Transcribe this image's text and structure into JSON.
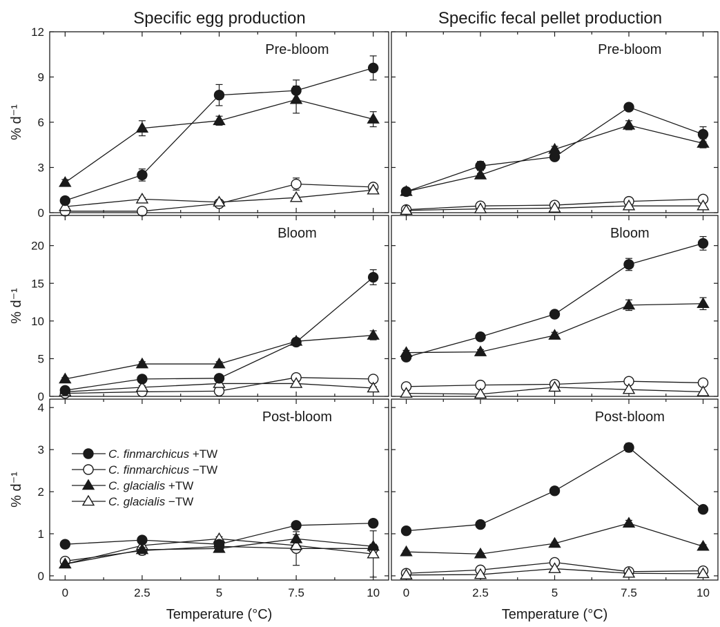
{
  "column_titles": [
    "Specific egg production",
    "Specific fecal pellet production"
  ],
  "legend": [
    {
      "species": "C. finmarchicus",
      "treatment": "+TW",
      "marker": "circle",
      "filled": true
    },
    {
      "species": "C. finmarchicus",
      "treatment": "−TW",
      "marker": "circle",
      "filled": false
    },
    {
      "species": "C. glacialis",
      "treatment": "+TW",
      "marker": "triangle",
      "filled": true
    },
    {
      "species": "C. glacialis",
      "treatment": "−TW",
      "marker": "triangle",
      "filled": false
    }
  ],
  "colors": {
    "ink": "#1a1a1a",
    "open_fill": "#ffffff"
  },
  "chart_data": [
    {
      "type": "line",
      "column": 0,
      "row": 0,
      "label": "Pre-bloom",
      "ylabel": "% d⁻¹",
      "xlabel": "",
      "x": [
        0,
        2.5,
        5,
        7.5,
        10
      ],
      "xlim": [
        -0.5,
        10.5
      ],
      "ylim": [
        0,
        12
      ],
      "yticks": [
        0,
        3,
        6,
        9,
        12
      ],
      "series": [
        {
          "name": "C. finmarchicus +TW",
          "values": [
            0.8,
            2.5,
            7.8,
            8.1,
            9.6
          ],
          "errors": [
            0,
            0.4,
            0.7,
            0.7,
            0.8
          ]
        },
        {
          "name": "C. finmarchicus −TW",
          "values": [
            0.1,
            0.1,
            0.6,
            1.9,
            1.7
          ],
          "errors": [
            0,
            0,
            0,
            0.4,
            0.2
          ]
        },
        {
          "name": "C. glacialis +TW",
          "values": [
            2.0,
            5.6,
            6.1,
            7.5,
            6.2
          ],
          "errors": [
            0.2,
            0.5,
            0.3,
            0.9,
            0.5
          ]
        },
        {
          "name": "C. glacialis −TW",
          "values": [
            0.4,
            0.9,
            0.7,
            1.0,
            1.5
          ],
          "errors": [
            0,
            0.1,
            0,
            0.1,
            0.1
          ]
        }
      ]
    },
    {
      "type": "line",
      "column": 1,
      "row": 0,
      "label": "Pre-bloom",
      "ylabel": "",
      "xlabel": "",
      "x": [
        0,
        2.5,
        5,
        7.5,
        10
      ],
      "xlim": [
        -0.5,
        10.5
      ],
      "ylim": [
        0,
        12
      ],
      "yticks": [
        0,
        3,
        6,
        9,
        12
      ],
      "series": [
        {
          "name": "C. finmarchicus +TW",
          "values": [
            1.4,
            3.1,
            3.7,
            7.0,
            5.2
          ],
          "errors": [
            0.1,
            0.3,
            0.2,
            0.2,
            0.5
          ]
        },
        {
          "name": "C. finmarchicus −TW",
          "values": [
            0.2,
            0.45,
            0.5,
            0.75,
            0.9
          ],
          "errors": [
            0,
            0,
            0,
            0,
            0
          ]
        },
        {
          "name": "C. glacialis +TW",
          "values": [
            1.4,
            2.5,
            4.2,
            5.8,
            4.6
          ],
          "errors": [
            0.1,
            0.1,
            0.2,
            0.3,
            0.3
          ]
        },
        {
          "name": "C. glacialis −TW",
          "values": [
            0.15,
            0.25,
            0.3,
            0.45,
            0.45
          ],
          "errors": [
            0,
            0,
            0,
            0,
            0
          ]
        }
      ]
    },
    {
      "type": "line",
      "column": 0,
      "row": 1,
      "label": "Bloom",
      "ylabel": "% d⁻¹",
      "xlabel": "",
      "x": [
        0,
        2.5,
        5,
        7.5,
        10
      ],
      "xlim": [
        -0.5,
        10.5
      ],
      "ylim": [
        0,
        24
      ],
      "yticks": [
        0,
        5,
        10,
        15,
        20
      ],
      "series": [
        {
          "name": "C. finmarchicus +TW",
          "values": [
            0.8,
            2.3,
            2.4,
            7.2,
            15.8
          ],
          "errors": [
            0,
            0.3,
            0.4,
            0.5,
            1.0
          ]
        },
        {
          "name": "C. finmarchicus −TW",
          "values": [
            0.4,
            0.6,
            0.7,
            2.5,
            2.3
          ],
          "errors": [
            0,
            0,
            0,
            0.3,
            0.2
          ]
        },
        {
          "name": "C. glacialis +TW",
          "values": [
            2.3,
            4.3,
            4.3,
            7.3,
            8.1
          ],
          "errors": [
            0.2,
            0.3,
            0.3,
            0.4,
            0.6
          ]
        },
        {
          "name": "C. glacialis −TW",
          "values": [
            0.6,
            1.2,
            1.7,
            1.7,
            1.1
          ],
          "errors": [
            0,
            0.2,
            0.2,
            0.3,
            0.2
          ]
        }
      ]
    },
    {
      "type": "line",
      "column": 1,
      "row": 1,
      "label": "Bloom",
      "ylabel": "",
      "xlabel": "",
      "x": [
        0,
        2.5,
        5,
        7.5,
        10
      ],
      "xlim": [
        -0.5,
        10.5
      ],
      "ylim": [
        0,
        24
      ],
      "yticks": [
        0,
        5,
        10,
        15,
        20
      ],
      "series": [
        {
          "name": "C. finmarchicus +TW",
          "values": [
            5.2,
            7.9,
            10.9,
            17.5,
            20.3
          ],
          "errors": [
            0.5,
            0.3,
            0.3,
            0.8,
            0.9
          ]
        },
        {
          "name": "C. finmarchicus −TW",
          "values": [
            1.3,
            1.5,
            1.6,
            2.0,
            1.8
          ],
          "errors": [
            0,
            0,
            0,
            0,
            0
          ]
        },
        {
          "name": "C. glacialis +TW",
          "values": [
            5.8,
            5.9,
            8.1,
            12.1,
            12.3
          ],
          "errors": [
            0.3,
            0.3,
            0.4,
            0.7,
            0.8
          ]
        },
        {
          "name": "C. glacialis −TW",
          "values": [
            0.4,
            0.3,
            1.2,
            0.9,
            0.6
          ],
          "errors": [
            0,
            0,
            0,
            0,
            0
          ]
        }
      ]
    },
    {
      "type": "line",
      "column": 0,
      "row": 2,
      "label": "Post-bloom",
      "ylabel": "% d⁻¹",
      "xlabel": "Temperature (°C)",
      "x": [
        0,
        2.5,
        5,
        7.5,
        10
      ],
      "xlim": [
        -0.5,
        10.5
      ],
      "ylim": [
        -0.1,
        4.2
      ],
      "yticks": [
        0,
        1,
        2,
        3,
        4
      ],
      "series": [
        {
          "name": "C. finmarchicus +TW",
          "values": [
            0.75,
            0.85,
            0.75,
            1.2,
            1.25
          ],
          "errors": [
            0,
            0.05,
            0.05,
            0.05,
            0.05
          ]
        },
        {
          "name": "C. finmarchicus −TW",
          "values": [
            0.35,
            0.6,
            0.7,
            0.65,
            0.65
          ],
          "errors": [
            0,
            0.1,
            0.1,
            0.4,
            0.1
          ]
        },
        {
          "name": "C. glacialis +TW",
          "values": [
            0.28,
            0.62,
            0.65,
            0.88,
            0.7
          ],
          "errors": [
            0,
            0.05,
            0.05,
            0.1,
            0.05
          ]
        },
        {
          "name": "C. glacialis −TW",
          "values": [
            0.28,
            0.72,
            0.88,
            0.72,
            0.52
          ],
          "errors": [
            0,
            0.05,
            0.05,
            0.1,
            0.55
          ]
        }
      ]
    },
    {
      "type": "line",
      "column": 1,
      "row": 2,
      "label": "Post-bloom",
      "ylabel": "",
      "xlabel": "Temperature (°C)",
      "x": [
        0,
        2.5,
        5,
        7.5,
        10
      ],
      "xlim": [
        -0.5,
        10.5
      ],
      "ylim": [
        -0.1,
        4.2
      ],
      "yticks": [
        0,
        1,
        2,
        3,
        4
      ],
      "series": [
        {
          "name": "C. finmarchicus +TW",
          "values": [
            1.07,
            1.22,
            2.02,
            3.05,
            1.58
          ],
          "errors": [
            0,
            0,
            0,
            0.1,
            0
          ]
        },
        {
          "name": "C. finmarchicus −TW",
          "values": [
            0.06,
            0.14,
            0.32,
            0.1,
            0.12
          ],
          "errors": [
            0.05,
            0,
            0,
            0,
            0
          ]
        },
        {
          "name": "C. glacialis +TW",
          "values": [
            0.57,
            0.52,
            0.77,
            1.25,
            0.7
          ],
          "errors": [
            0.03,
            0.03,
            0.03,
            0.07,
            0.04
          ]
        },
        {
          "name": "C. glacialis −TW",
          "values": [
            0.02,
            0.03,
            0.17,
            0.06,
            0.05
          ],
          "errors": [
            0,
            0,
            0,
            0,
            0
          ]
        }
      ]
    }
  ]
}
